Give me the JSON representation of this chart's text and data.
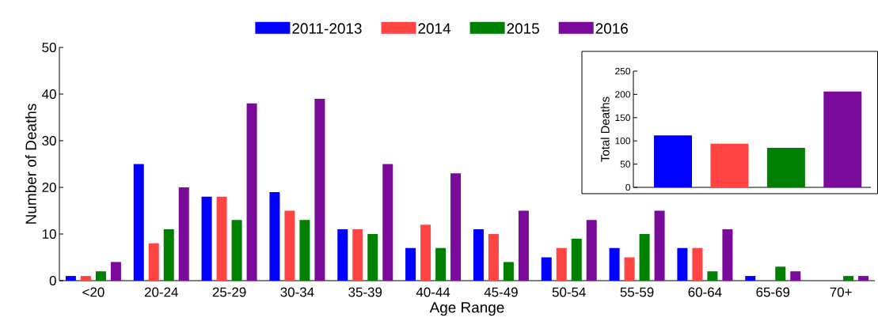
{
  "chart_data": [
    {
      "type": "bar",
      "xlabel": "Age Range",
      "ylabel": "Number of Deaths",
      "categories": [
        "<20",
        "20-24",
        "25-29",
        "30-34",
        "35-39",
        "40-44",
        "45-49",
        "50-54",
        "55-59",
        "60-64",
        "65-69",
        "70+"
      ],
      "series": [
        {
          "name": "2011-2013",
          "color": "#0000ff",
          "values": [
            1,
            25,
            18,
            19,
            11,
            7,
            11,
            5,
            7,
            7,
            1,
            0
          ]
        },
        {
          "name": "2014",
          "color": "#ff4444",
          "values": [
            1,
            8,
            18,
            15,
            11,
            12,
            10,
            7,
            5,
            7,
            0,
            0
          ]
        },
        {
          "name": "2015",
          "color": "#008000",
          "values": [
            2,
            11,
            13,
            13,
            10,
            7,
            4,
            9,
            10,
            2,
            3,
            1
          ]
        },
        {
          "name": "2016",
          "color": "#7a0a9a",
          "values": [
            4,
            20,
            38,
            39,
            25,
            23,
            15,
            13,
            15,
            11,
            2,
            1
          ]
        }
      ],
      "ylim": [
        0,
        50
      ],
      "yticks": [
        0,
        10,
        20,
        30,
        40,
        50
      ],
      "legend": "top"
    },
    {
      "type": "bar",
      "ylabel": "Total  Deaths",
      "categories": [
        null,
        null,
        null,
        null
      ],
      "values": [
        112,
        94,
        85,
        206
      ],
      "colors": [
        "#0000ff",
        "#ff4444",
        "#008000",
        "#7a0a9a"
      ],
      "ylim": [
        0,
        250
      ],
      "yticks": [
        0,
        50,
        100,
        150,
        200,
        250
      ],
      "tick_labels": "y"
    }
  ]
}
